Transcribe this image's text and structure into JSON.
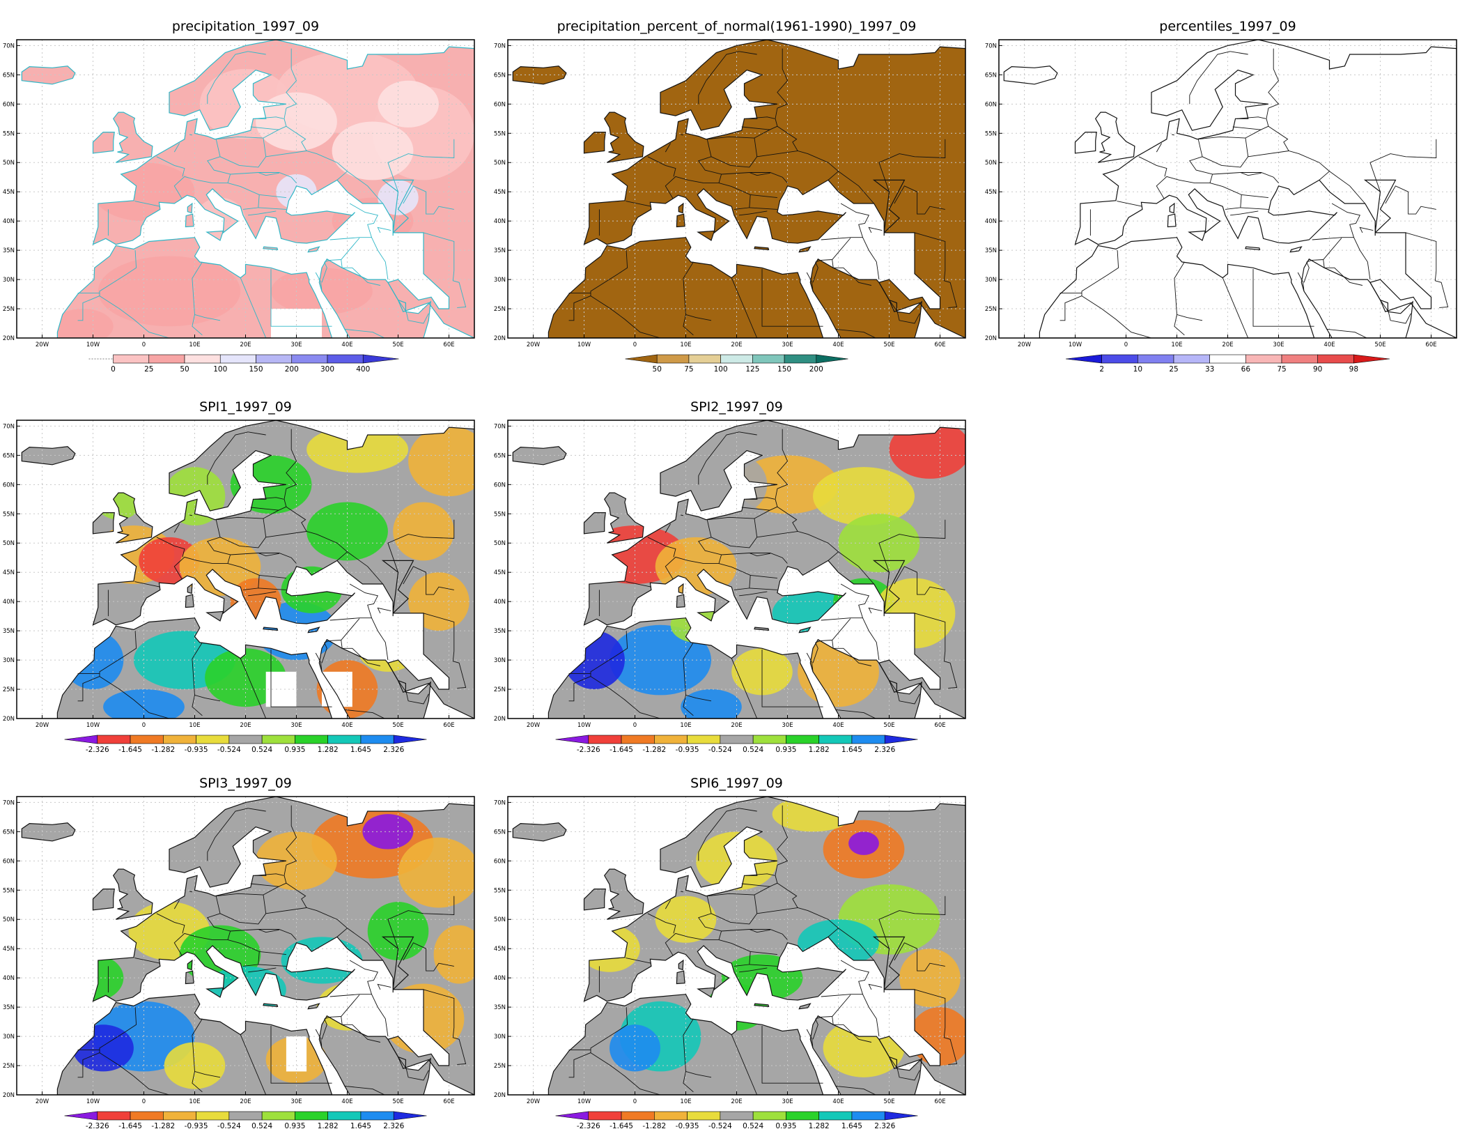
{
  "colors": {
    "land_gray": "#a6a6a6",
    "border": "#111111",
    "grid": "#c8c8c8",
    "water": "#ffffff",
    "prec_land": "#f7b0b0",
    "prec_border": "#2fb7c7"
  },
  "map_ticks": {
    "lon": [
      "20W",
      "10W",
      "0",
      "10E",
      "20E",
      "30E",
      "40E",
      "50E",
      "60E"
    ],
    "lat": [
      "20N",
      "25N",
      "30N",
      "35N",
      "40N",
      "45N",
      "50N",
      "55N",
      "60N",
      "65N",
      "70N"
    ]
  },
  "panels": [
    {
      "id": "precip",
      "title": "precipitation_1997_09",
      "scheme": "precip",
      "legend": {
        "labels": [
          "0",
          "25",
          "50",
          "100",
          "150",
          "200",
          "300",
          "400"
        ],
        "colors": [
          "#fbc3c3",
          "#f7a5a5",
          "#fde0e0",
          "#e5e5fb",
          "#b7b7f5",
          "#8a8af0",
          "#5d5de8",
          "#3a3ad8"
        ],
        "left_arrow": false,
        "right_arrow": true
      }
    },
    {
      "id": "pct-normal",
      "title": "precipitation_percent_of_normal(1961-1990)_1997_09",
      "scheme": "pct",
      "legend": {
        "labels": [
          "50",
          "75",
          "100",
          "125",
          "150",
          "200"
        ],
        "colors": [
          "#a16511",
          "#cf9a48",
          "#e5cf96",
          "#cdeae6",
          "#7fc6bb",
          "#2f8f82",
          "#0c6e62"
        ],
        "left_arrow": true,
        "right_arrow": true
      }
    },
    {
      "id": "percentiles",
      "title": "percentiles_1997_09",
      "scheme": "perc",
      "legend": {
        "labels": [
          "2",
          "10",
          "25",
          "33",
          "66",
          "75",
          "90",
          "98"
        ],
        "colors": [
          "#1a1ad8",
          "#4c4ce8",
          "#8080f0",
          "#b6b6f8",
          "#ffffff",
          "#f8b6b6",
          "#f08080",
          "#e84c4c",
          "#d81a1a"
        ],
        "left_arrow": true,
        "right_arrow": true
      }
    },
    {
      "id": "spi1",
      "title": "SPI1_1997_09",
      "scheme": "spi",
      "legend": {
        "labels": [
          "-2.326",
          "-1.645",
          "-1.282",
          "-0.935",
          "-0.524",
          "0.524",
          "0.935",
          "1.282",
          "1.645",
          "2.326"
        ],
        "colors": [
          "#8a1ae0",
          "#f0403a",
          "#f07a24",
          "#f0b23a",
          "#e8dc3c",
          "#a6a6a6",
          "#9ee03c",
          "#2ad22a",
          "#14c8b8",
          "#1e8cf0",
          "#1e2ae0"
        ],
        "left_arrow": true,
        "right_arrow": true
      }
    },
    {
      "id": "spi2",
      "title": "SPI2_1997_09",
      "scheme": "spi",
      "legend": {
        "labels": [
          "-2.326",
          "-1.645",
          "-1.282",
          "-0.935",
          "-0.524",
          "0.524",
          "0.935",
          "1.282",
          "1.645",
          "2.326"
        ],
        "colors": [
          "#8a1ae0",
          "#f0403a",
          "#f07a24",
          "#f0b23a",
          "#e8dc3c",
          "#a6a6a6",
          "#9ee03c",
          "#2ad22a",
          "#14c8b8",
          "#1e8cf0",
          "#1e2ae0"
        ],
        "left_arrow": true,
        "right_arrow": true
      }
    },
    {
      "id": "spi3",
      "title": "SPI3_1997_09",
      "scheme": "spi",
      "legend": {
        "labels": [
          "-2.326",
          "-1.645",
          "-1.282",
          "-0.935",
          "-0.524",
          "0.524",
          "0.935",
          "1.282",
          "1.645",
          "2.326"
        ],
        "colors": [
          "#8a1ae0",
          "#f0403a",
          "#f07a24",
          "#f0b23a",
          "#e8dc3c",
          "#a6a6a6",
          "#9ee03c",
          "#2ad22a",
          "#14c8b8",
          "#1e8cf0",
          "#1e2ae0"
        ],
        "left_arrow": true,
        "right_arrow": true
      }
    },
    {
      "id": "spi6",
      "title": "SPI6_1997_09",
      "scheme": "spi",
      "legend": {
        "labels": [
          "-2.326",
          "-1.645",
          "-1.282",
          "-0.935",
          "-0.524",
          "0.524",
          "0.935",
          "1.282",
          "1.645",
          "2.326"
        ],
        "colors": [
          "#8a1ae0",
          "#f0403a",
          "#f07a24",
          "#f0b23a",
          "#e8dc3c",
          "#a6a6a6",
          "#9ee03c",
          "#2ad22a",
          "#14c8b8",
          "#1e8cf0",
          "#1e2ae0"
        ],
        "left_arrow": true,
        "right_arrow": true
      }
    }
  ]
}
